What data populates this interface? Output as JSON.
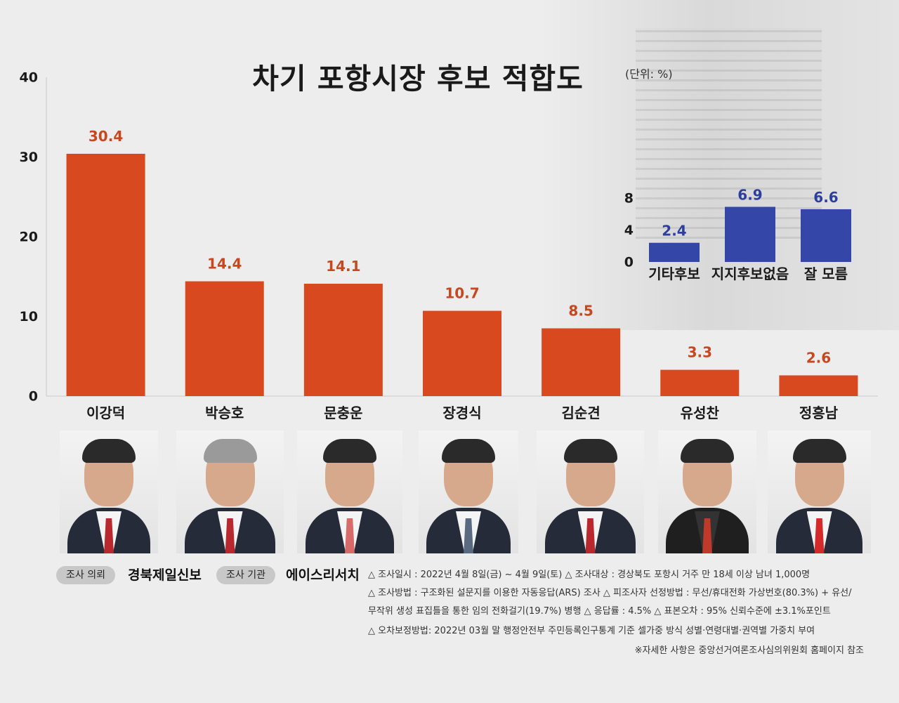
{
  "title": "차기 포항시장 후보 적합도",
  "unit_label": "(단위: %)",
  "chart_data": [
    {
      "type": "bar",
      "categories": [
        "이강덕",
        "박승호",
        "문충운",
        "장경식",
        "김순견",
        "유성찬",
        "정흥남"
      ],
      "values": [
        30.4,
        14.4,
        14.1,
        10.7,
        8.5,
        3.3,
        2.6
      ],
      "data_labels": [
        "30.4",
        "14.4",
        "14.1",
        "10.7",
        "8.5",
        "3.3",
        "2.6"
      ],
      "ylim": [
        0,
        40
      ],
      "yticks": [
        "0",
        "10",
        "20",
        "30",
        "40"
      ],
      "grid": false,
      "color": "#d9491f",
      "label_color": "#c8471f"
    },
    {
      "type": "bar",
      "categories": [
        "기타후보",
        "지지후보없음",
        "잘 모름"
      ],
      "values": [
        2.4,
        6.9,
        6.6
      ],
      "data_labels": [
        "2.4",
        "6.9",
        "6.6"
      ],
      "ylim": [
        0,
        8
      ],
      "yticks": [
        "0",
        "4",
        "8"
      ],
      "grid": false,
      "color": "#3446a8",
      "label_color": "#2d3f9e"
    }
  ],
  "footer": {
    "requester_label": "조사 의뢰",
    "requester": "경북제일신보",
    "agency_label": "조사 기관",
    "agency": "에이스리서치",
    "notes": [
      "△ 조사일시 : 2022년 4월 8일(금) ~ 4월 9일(토)   △ 조사대상 : 경상북도 포항시 거주 만 18세 이상 남녀 1,000명",
      "△ 조사방법 : 구조화된 설문지를 이용한 자동응답(ARS) 조사 △ 피조사자 선정방법 : 무선/휴대전화 가상번호(80.3%) + 유선/",
      "무작위 생성 표집틀을 통한 임의 전화걸기(19.7%) 병행  △ 응답률 : 4.5%  △ 표본오차 : 95% 신뢰수준에 ±3.1%포인트",
      "△ 오차보정방법: 2022년 03월 말 행정안전부  주민등록인구통계 기준 셀가중 방식 성별·연령대별·권역별 가중치 부여"
    ],
    "reference": "※자세한 사항은 중앙선거여론조사심의위원회 홈페이지 참조"
  }
}
